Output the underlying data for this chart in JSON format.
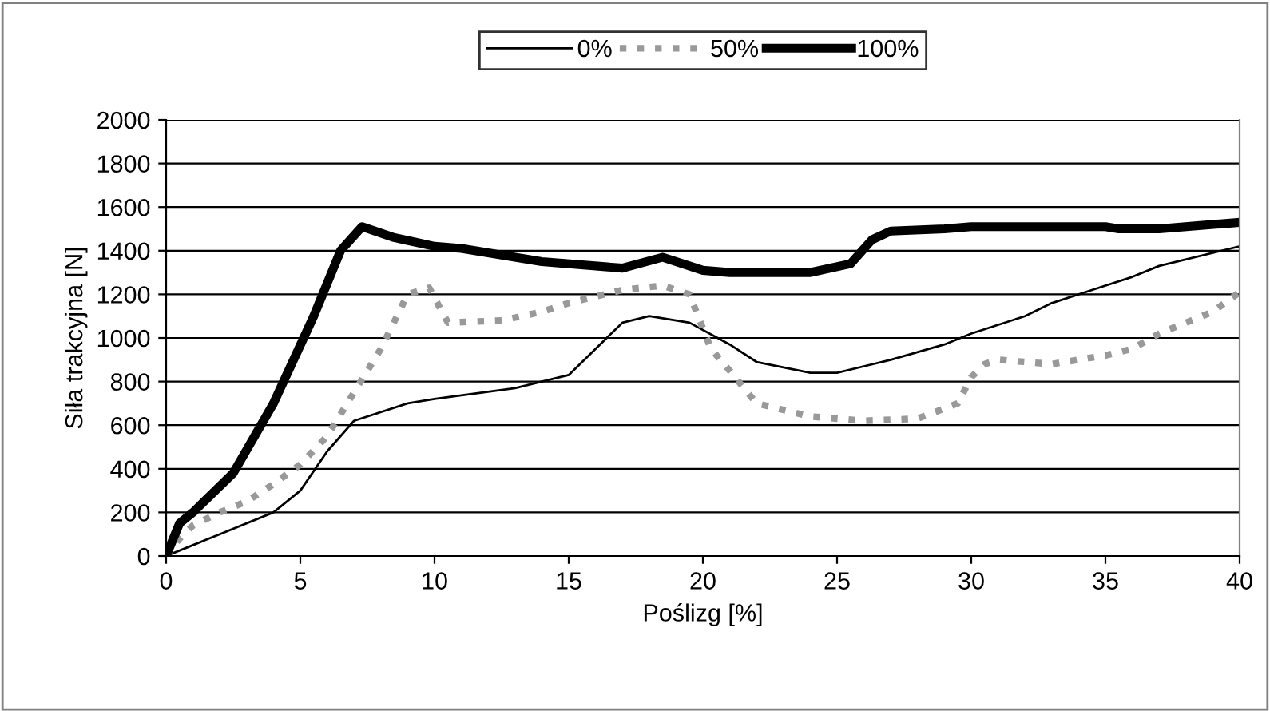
{
  "chart_data": {
    "type": "line",
    "xlabel": "Poślizg [%]",
    "ylabel": "Siła trakcyjna [N]",
    "xlim": [
      0,
      40
    ],
    "xticks": [
      0,
      5,
      10,
      15,
      20,
      25,
      30,
      35,
      40
    ],
    "ylim": [
      0,
      2000
    ],
    "yticks": [
      0,
      200,
      400,
      600,
      800,
      1000,
      1200,
      1400,
      1600,
      1800,
      2000
    ],
    "grid": "y",
    "legend": "top",
    "marker": "none",
    "series": [
      {
        "name": "0%",
        "color": "#000000",
        "line_style": "solid",
        "x": [
          0,
          1,
          2,
          4,
          5,
          6,
          7,
          9,
          10,
          13,
          15,
          16,
          17,
          18,
          19.5,
          21,
          22,
          24,
          25,
          26,
          27,
          29,
          30,
          32,
          33,
          35,
          36,
          37,
          40
        ],
        "values": [
          0,
          50,
          100,
          200,
          300,
          480,
          620,
          700,
          720,
          770,
          830,
          950,
          1070,
          1100,
          1070,
          970,
          890,
          840,
          840,
          870,
          900,
          970,
          1020,
          1100,
          1160,
          1240,
          1280,
          1330,
          1420
        ]
      },
      {
        "name": "50%",
        "color": "#999999",
        "line_style": "dotted",
        "x": [
          0,
          0.5,
          1,
          2,
          3,
          4,
          5,
          6,
          7,
          8,
          9,
          9.8,
          10.5,
          12.5,
          14,
          15,
          17,
          18.5,
          19.5,
          20.3,
          21,
          22,
          24,
          26,
          28,
          29.5,
          30,
          30.5,
          31,
          33,
          35,
          36,
          37,
          39,
          40
        ],
        "values": [
          0,
          80,
          140,
          200,
          250,
          330,
          420,
          550,
          750,
          950,
          1200,
          1230,
          1070,
          1080,
          1120,
          1160,
          1220,
          1240,
          1200,
          950,
          850,
          700,
          640,
          620,
          630,
          700,
          820,
          880,
          900,
          880,
          920,
          950,
          1020,
          1120,
          1210
        ]
      },
      {
        "name": "100%",
        "color": "#000000",
        "line_style": "solid",
        "x": [
          0,
          0.5,
          1,
          2.5,
          4,
          5.5,
          6.5,
          7.3,
          8.5,
          10,
          11,
          12.5,
          14,
          17,
          18.5,
          20,
          21,
          24,
          25.5,
          26.3,
          27,
          29,
          30,
          35,
          35.5,
          37,
          40
        ],
        "values": [
          0,
          150,
          200,
          380,
          700,
          1100,
          1400,
          1510,
          1460,
          1420,
          1410,
          1380,
          1350,
          1320,
          1370,
          1310,
          1300,
          1300,
          1340,
          1450,
          1490,
          1500,
          1510,
          1510,
          1500,
          1500,
          1530
        ]
      }
    ]
  }
}
